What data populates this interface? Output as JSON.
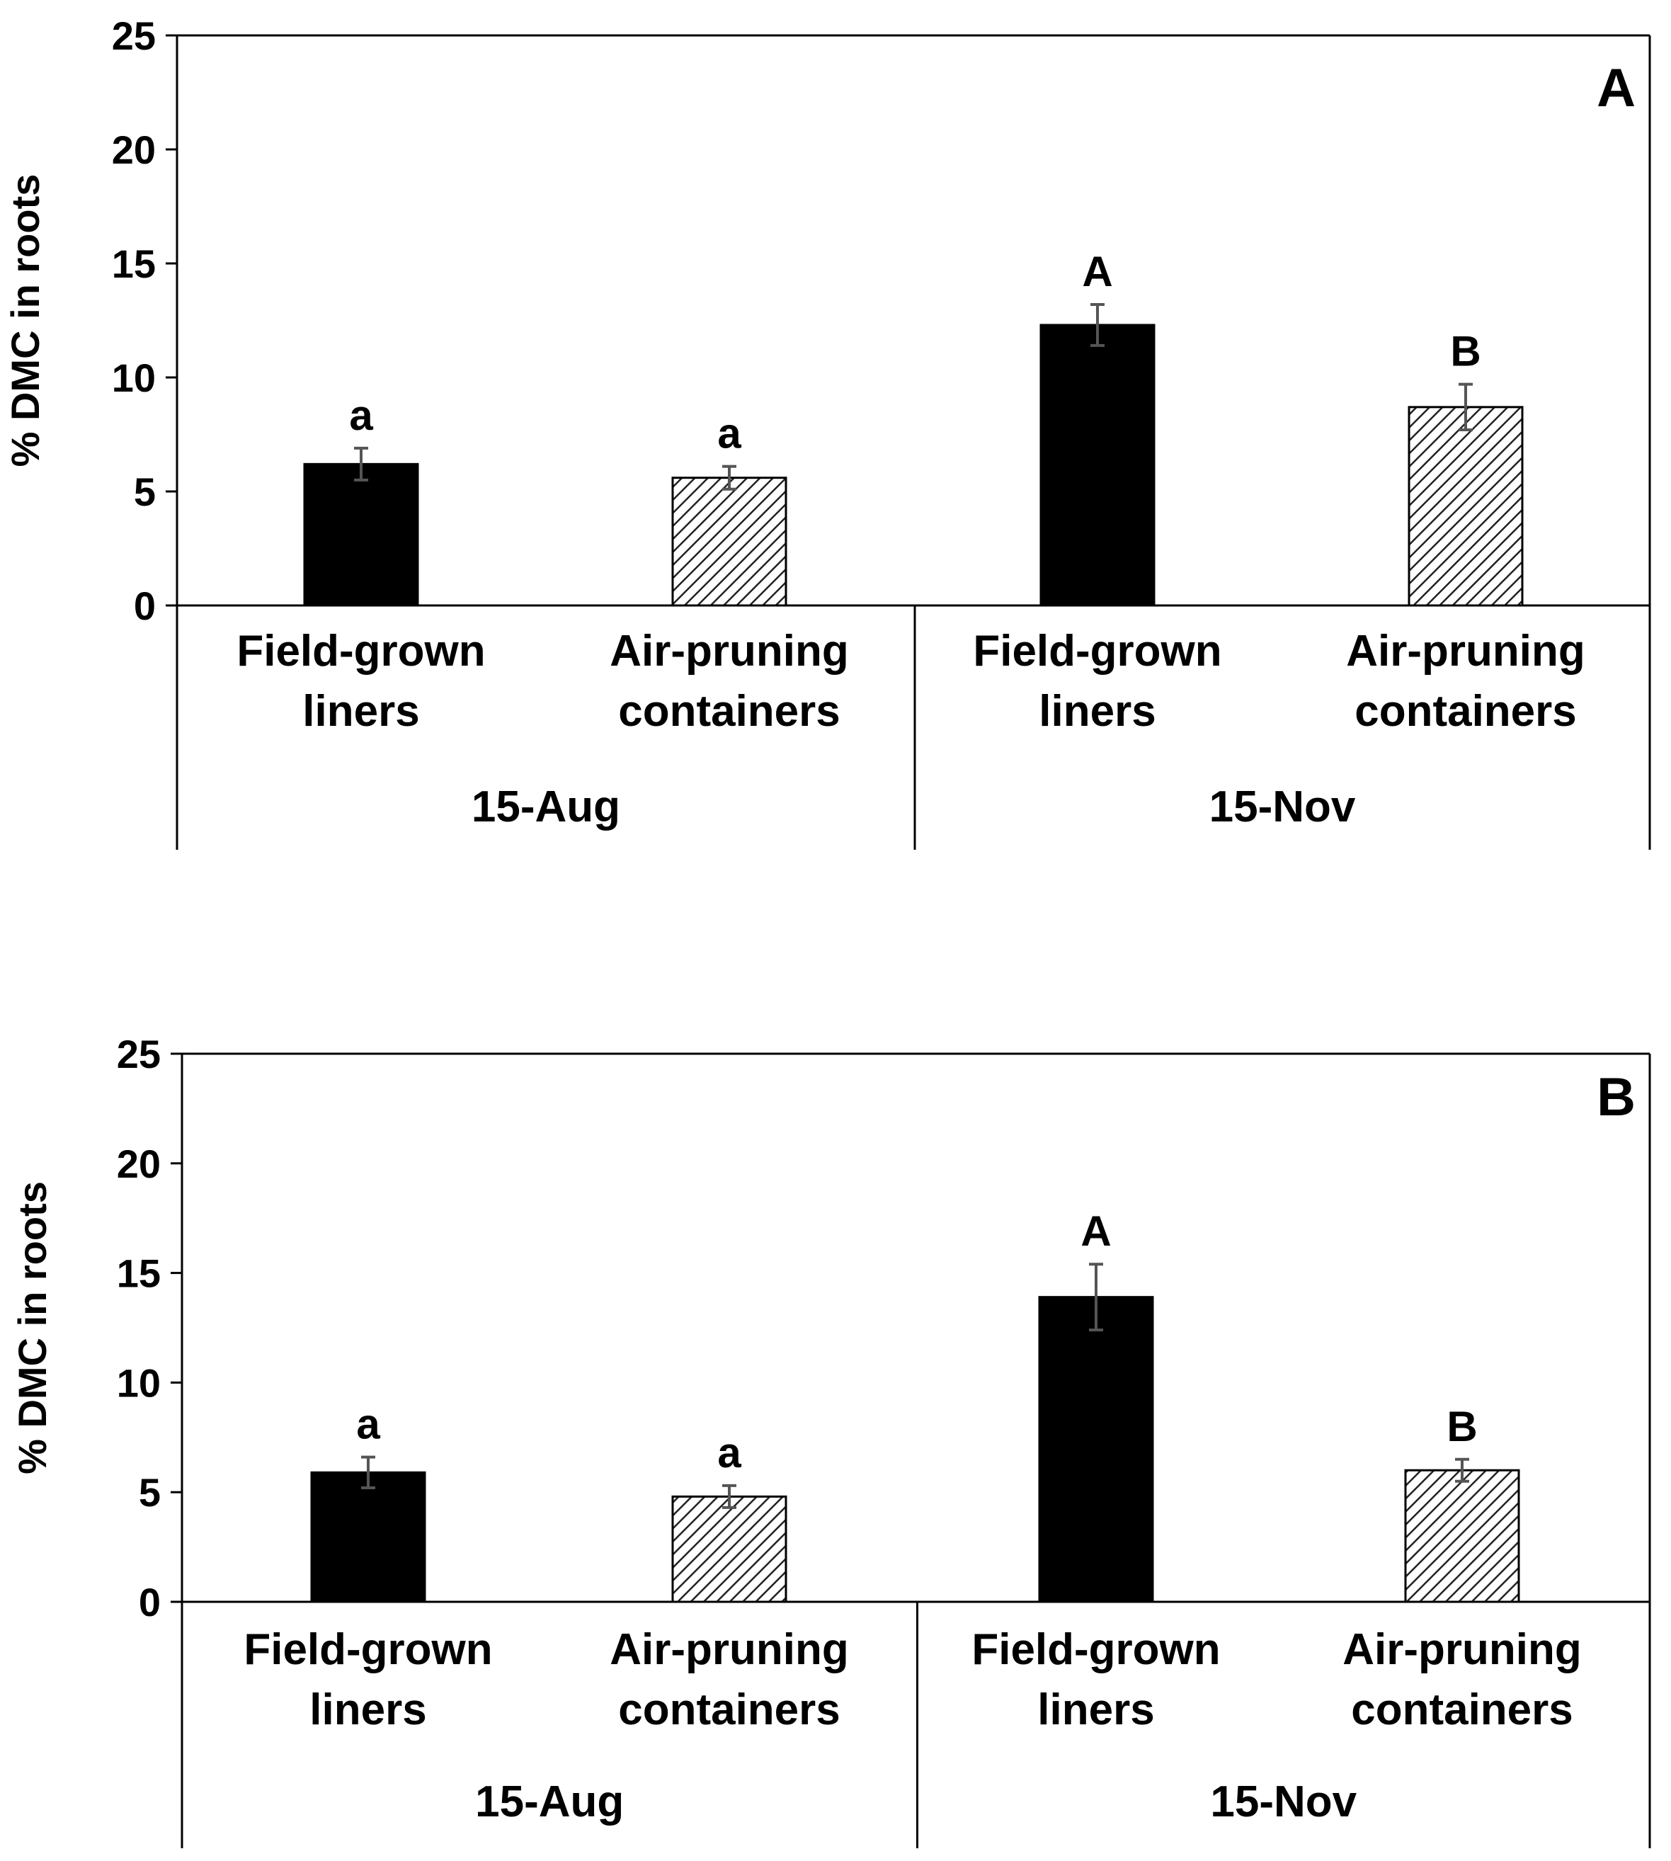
{
  "chart_data": [
    {
      "type": "bar",
      "panel_label": "A",
      "ylabel": "% DMC in roots",
      "ylim": [
        0,
        25
      ],
      "yticks": [
        "0",
        "5",
        "10",
        "15",
        "20",
        "25"
      ],
      "groups": [
        {
          "label": "15-Aug",
          "bars": [
            {
              "category": "Field-grown liners",
              "lines": [
                "Field-grown",
                "liners"
              ],
              "value": 6.2,
              "error": 0.7,
              "letter": "a",
              "style": "solid"
            },
            {
              "category": "Air-pruning containers",
              "lines": [
                "Air-pruning",
                "containers"
              ],
              "value": 5.6,
              "error": 0.5,
              "letter": "a",
              "style": "hatched"
            }
          ]
        },
        {
          "label": "15-Nov",
          "bars": [
            {
              "category": "Field-grown liners",
              "lines": [
                "Field-grown",
                "liners"
              ],
              "value": 12.3,
              "error": 0.9,
              "letter": "A",
              "style": "solid"
            },
            {
              "category": "Air-pruning containers",
              "lines": [
                "Air-pruning",
                "containers"
              ],
              "value": 8.7,
              "error": 1.0,
              "letter": "B",
              "style": "hatched"
            }
          ]
        }
      ]
    },
    {
      "type": "bar",
      "panel_label": "B",
      "ylabel": "% DMC in roots",
      "ylim": [
        0,
        25
      ],
      "yticks": [
        "0",
        "5",
        "10",
        "15",
        "20",
        "25"
      ],
      "groups": [
        {
          "label": "15-Aug",
          "bars": [
            {
              "category": "Field-grown liners",
              "lines": [
                "Field-grown",
                "liners"
              ],
              "value": 5.9,
              "error": 0.7,
              "letter": "a",
              "style": "solid"
            },
            {
              "category": "Air-pruning containers",
              "lines": [
                "Air-pruning",
                "containers"
              ],
              "value": 4.8,
              "error": 0.5,
              "letter": "a",
              "style": "hatched"
            }
          ]
        },
        {
          "label": "15-Nov",
          "bars": [
            {
              "category": "Field-grown liners",
              "lines": [
                "Field-grown",
                "liners"
              ],
              "value": 13.9,
              "error": 1.5,
              "letter": "A",
              "style": "solid"
            },
            {
              "category": "Air-pruning containers",
              "lines": [
                "Air-pruning",
                "containers"
              ],
              "value": 6.0,
              "error": 0.5,
              "letter": "B",
              "style": "hatched"
            }
          ]
        }
      ]
    }
  ],
  "colors": {
    "solid": "#000000",
    "hatch": "#222222",
    "hatch_bg": "#ffffff",
    "error_bar": "#555555"
  }
}
